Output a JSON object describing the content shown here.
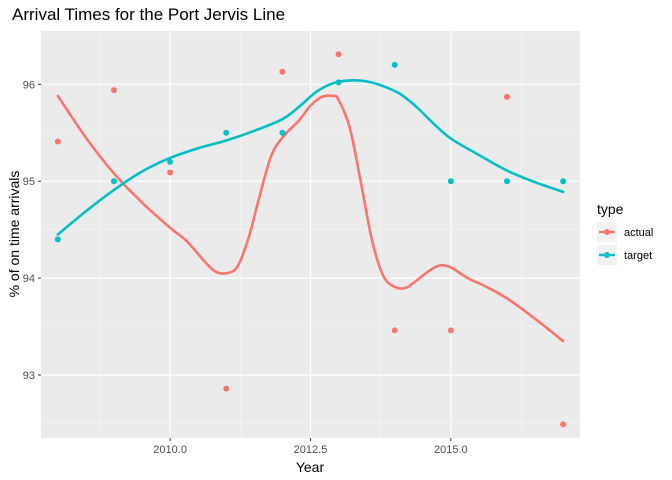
{
  "chart_data": {
    "type": "scatter",
    "title": "Arrival Times for the Port Jervis Line",
    "xlabel": "Year",
    "ylabel": "% of on time arrivals",
    "xlim": [
      2007.7,
      2017.3
    ],
    "ylim": [
      92.35,
      96.55
    ],
    "x_ticks": [
      2010.0,
      2012.5,
      2015.0
    ],
    "x_tick_labels": [
      "2010.0",
      "2012.5",
      "2015.0"
    ],
    "y_ticks": [
      93,
      94,
      95,
      96
    ],
    "y_tick_labels": [
      "93",
      "94",
      "95",
      "96"
    ],
    "grid": true,
    "legend": {
      "title": "type",
      "placement": "right",
      "entries": [
        "actual",
        "target"
      ]
    },
    "series": [
      {
        "name": "actual",
        "color": "#F8766D",
        "points": {
          "x": [
            2008,
            2009,
            2010,
            2011,
            2012,
            2013,
            2014,
            2015,
            2016,
            2017
          ],
          "y": [
            95.41,
            95.94,
            95.09,
            92.86,
            96.13,
            96.31,
            93.46,
            93.46,
            95.87,
            92.49
          ]
        },
        "smooth": {
          "x": [
            2008,
            2008.5,
            2009,
            2009.5,
            2010,
            2010.3,
            2010.6,
            2010.8,
            2011,
            2011.2,
            2011.4,
            2011.6,
            2011.8,
            2012,
            2012.3,
            2012.5,
            2012.7,
            2012.9,
            2013,
            2013.2,
            2013.4,
            2013.6,
            2013.8,
            2014,
            2014.2,
            2014.4,
            2014.6,
            2014.8,
            2015,
            2015.3,
            2015.6,
            2016,
            2016.5,
            2017
          ],
          "y": [
            95.88,
            95.45,
            95.08,
            94.78,
            94.52,
            94.38,
            94.18,
            94.07,
            94.05,
            94.12,
            94.42,
            94.86,
            95.26,
            95.45,
            95.63,
            95.78,
            95.87,
            95.88,
            95.84,
            95.55,
            94.98,
            94.38,
            94.02,
            93.91,
            93.9,
            93.98,
            94.07,
            94.13,
            94.11,
            94.0,
            93.92,
            93.79,
            93.58,
            93.35
          ]
        }
      },
      {
        "name": "target",
        "color": "#00BFC4",
        "points": {
          "x": [
            2008,
            2009,
            2010,
            2011,
            2012,
            2013,
            2014,
            2015,
            2016,
            2017
          ],
          "y": [
            94.4,
            95.0,
            95.2,
            95.5,
            95.5,
            96.02,
            96.2,
            95.0,
            95.0,
            95.0
          ]
        },
        "smooth": {
          "x": [
            2008,
            2008.5,
            2009,
            2009.5,
            2010,
            2010.5,
            2011,
            2011.5,
            2012,
            2012.3,
            2012.6,
            2012.9,
            2013.2,
            2013.5,
            2013.8,
            2014.1,
            2014.4,
            2014.7,
            2015,
            2015.5,
            2016,
            2016.5,
            2017
          ],
          "y": [
            94.45,
            94.69,
            94.91,
            95.1,
            95.24,
            95.34,
            95.42,
            95.52,
            95.64,
            95.77,
            95.92,
            96.01,
            96.04,
            96.03,
            95.98,
            95.9,
            95.76,
            95.59,
            95.44,
            95.27,
            95.11,
            94.99,
            94.89
          ]
        }
      }
    ]
  }
}
